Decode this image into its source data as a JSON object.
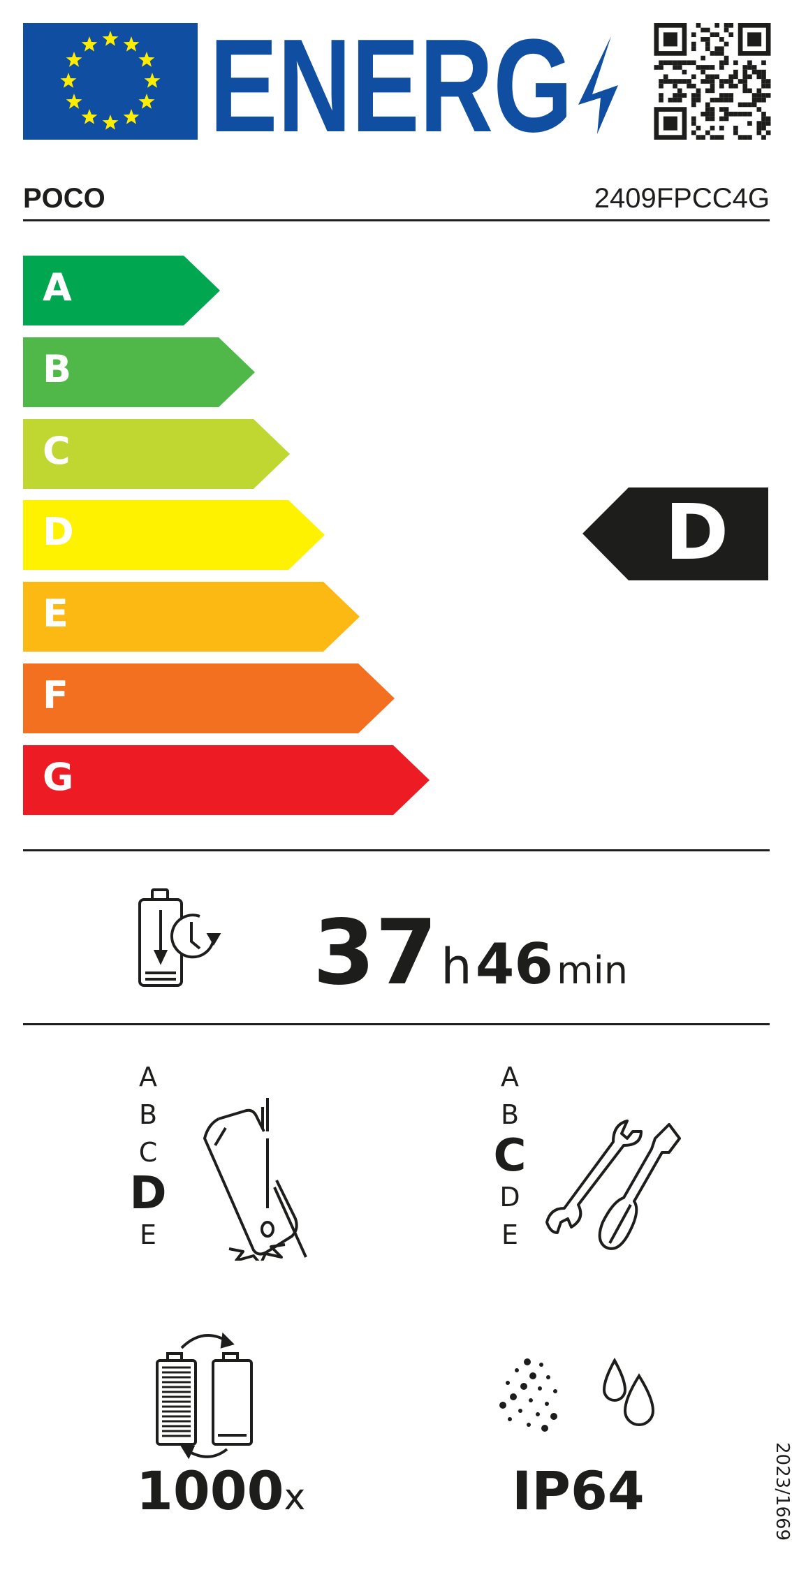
{
  "header": {
    "logo": "ENERG",
    "flag_icon": "eu-flag-icon",
    "qr_icon": "qr-code-icon"
  },
  "supplier": {
    "brand": "POCO",
    "model": "2409FPCC4G"
  },
  "energy_scale": {
    "classes": [
      {
        "label": "A",
        "color": "#00a650"
      },
      {
        "label": "B",
        "color": "#50b848"
      },
      {
        "label": "C",
        "color": "#bfd730"
      },
      {
        "label": "D",
        "color": "#fff200"
      },
      {
        "label": "E",
        "color": "#fdb913"
      },
      {
        "label": "F",
        "color": "#f37021"
      },
      {
        "label": "G",
        "color": "#ed1c24"
      }
    ],
    "rating": "D"
  },
  "battery_endurance": {
    "hours": "37",
    "hours_unit": "h",
    "minutes": "46",
    "minutes_unit": "min"
  },
  "drop_reliability": {
    "scale": [
      "A",
      "B",
      "C",
      "D",
      "E"
    ],
    "rating": "D"
  },
  "repairability": {
    "scale": [
      "A",
      "B",
      "C",
      "D",
      "E"
    ],
    "rating": "C"
  },
  "battery_cycles": {
    "value": "1000",
    "unit": "x"
  },
  "ingress": {
    "value": "IP64"
  },
  "regulation": "2023/1669"
}
